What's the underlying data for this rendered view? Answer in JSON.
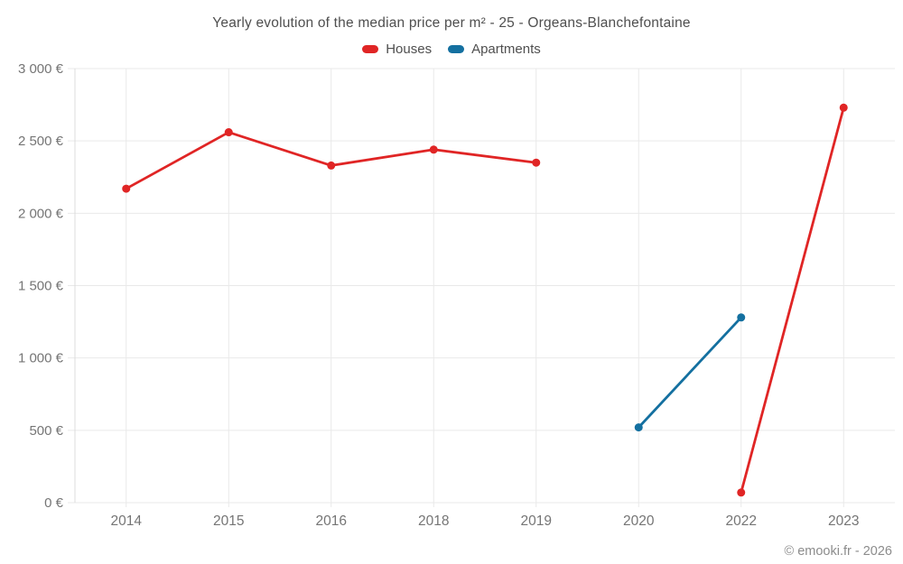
{
  "header": {
    "title": "Yearly evolution of the median price per m² - 25 - Orgeans-Blanchefontaine",
    "legend": [
      {
        "label": "Houses",
        "color": "#e02525"
      },
      {
        "label": "Apartments",
        "color": "#1470a0"
      }
    ]
  },
  "footer": {
    "credit": "© emooki.fr - 2026"
  },
  "chart_data": {
    "type": "line",
    "title": "Yearly evolution of the median price per m² - 25 - Orgeans-Blanchefontaine",
    "categories": [
      "2014",
      "2015",
      "2016",
      "2018",
      "2019",
      "2020",
      "2022",
      "2023"
    ],
    "series": [
      {
        "name": "Houses",
        "color": "#e02525",
        "values": [
          2170,
          2560,
          2330,
          2440,
          2350,
          null,
          70,
          2730
        ]
      },
      {
        "name": "Apartments",
        "color": "#1470a0",
        "values": [
          null,
          null,
          null,
          null,
          null,
          520,
          1280,
          null
        ]
      }
    ],
    "xlabel": "",
    "ylabel": "",
    "ylim": [
      0,
      3000
    ],
    "y_tick_step": 500,
    "y_tick_labels": [
      "0 €",
      "500 €",
      "1 000 €",
      "1 500 €",
      "2 000 €",
      "2 500 €",
      "3 000 €"
    ],
    "currency": "€",
    "grid": true,
    "legend_position": "top",
    "colors": {
      "grid": "#e9e9e9",
      "axis": "#dcdcdc",
      "tick_text": "#757575"
    }
  }
}
